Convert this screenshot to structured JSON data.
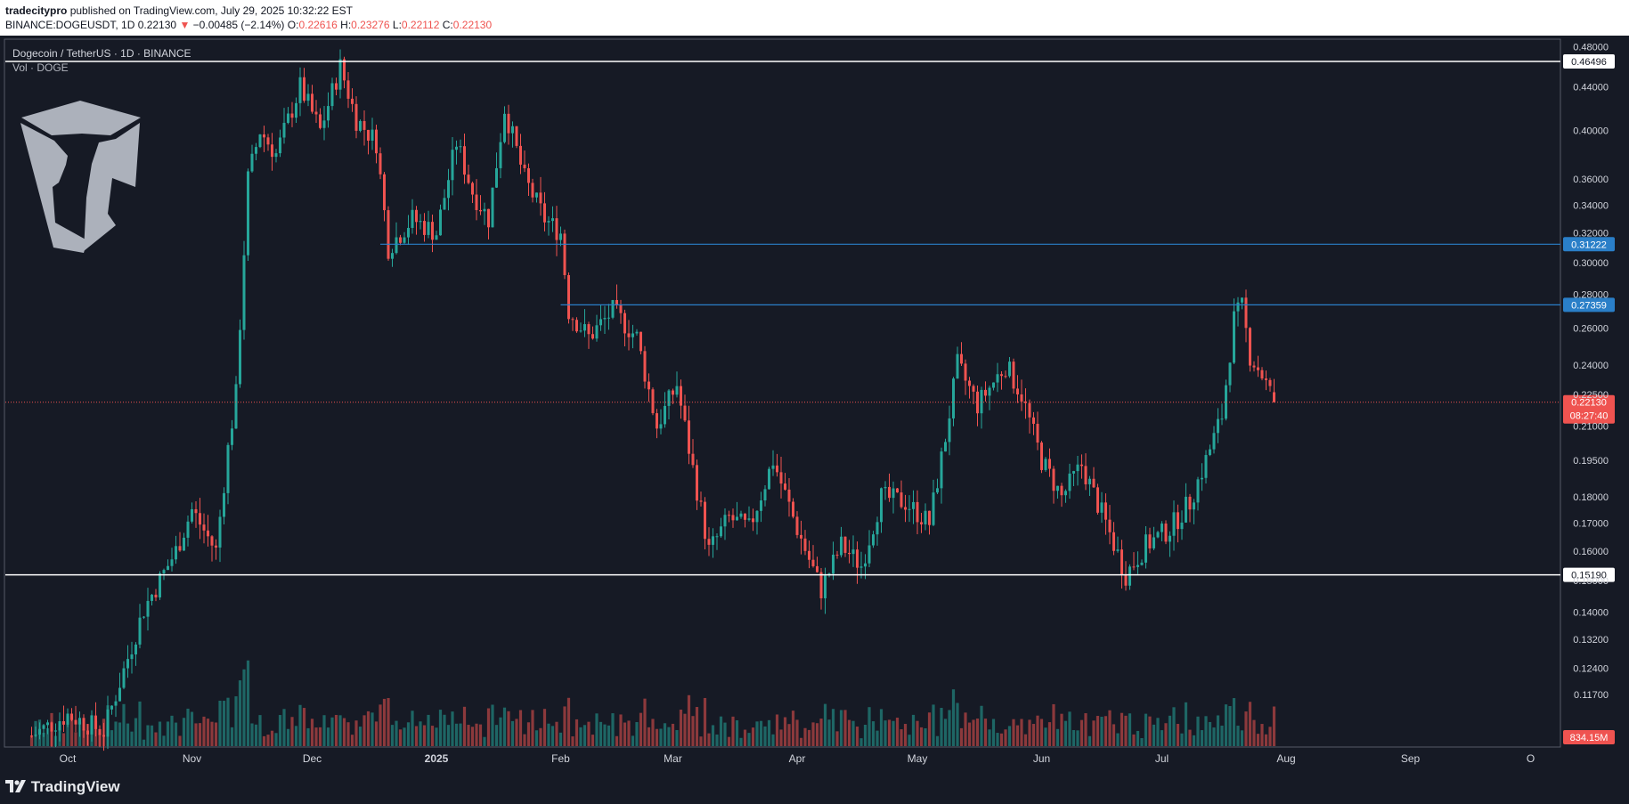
{
  "header": {
    "publisher": "tradecitypro",
    "published_text": " published on TradingView.com, July 29, 2025 10:32:22 EST",
    "symbol": "BINANCE:DOGEUSDT, 1D",
    "last": "0.22130",
    "change_arrow": "▼",
    "change": "−0.00485 (−2.14%)",
    "o_label": "O:",
    "o": "0.22616",
    "h_label": "H:",
    "h": "0.23276",
    "l_label": "L:",
    "l": "0.22112",
    "c_label": "C:",
    "c": "0.22130"
  },
  "legend": {
    "title": "Dogecoin / TetherUS · 1D · BINANCE",
    "volume": "Vol · DOGE"
  },
  "footer": {
    "brand": "TradingView"
  },
  "colors": {
    "background": "#161a25",
    "up": "#26a69a",
    "down": "#ef5350",
    "line_white": "#ffffff",
    "line_blue": "#2962ff",
    "blue_label": "#2a7fc8"
  },
  "chart_data": {
    "type": "candlestick",
    "scale": "log",
    "x_ticks": [
      "Oct",
      "Nov",
      "Dec",
      "2025",
      "Feb",
      "Mar",
      "Apr",
      "May",
      "Jun",
      "Jul",
      "Aug",
      "Sep",
      "O"
    ],
    "y_ticks": [
      "0.48000",
      "0.44000",
      "0.40000",
      "0.36000",
      "0.34000",
      "0.32000",
      "0.30000",
      "0.28000",
      "0.26000",
      "0.24000",
      "0.22500",
      "0.21000",
      "0.19500",
      "0.18000",
      "0.17000",
      "0.16000",
      "0.15000",
      "0.14000",
      "0.13200",
      "0.12400",
      "0.11700"
    ],
    "ylim": [
      0.112,
      0.49
    ],
    "horizontal_lines": [
      {
        "value": 0.46496,
        "label": "0.46496",
        "color": "white",
        "start": "Sep 2024"
      },
      {
        "value": 0.31222,
        "label": "0.31222",
        "color": "blue",
        "start": "Dec 2024"
      },
      {
        "value": 0.27359,
        "label": "0.27359",
        "color": "blue",
        "start": "Feb 2025"
      },
      {
        "value": 0.1519,
        "label": "0.15190",
        "color": "white",
        "start": "Sep 2024"
      }
    ],
    "last_price": {
      "value": 0.2213,
      "label": "0.22130",
      "countdown": "08:27:40"
    },
    "volume_label": "834.15M",
    "price_path": [
      {
        "date": "2024-09-22",
        "close": 0.107
      },
      {
        "date": "2024-10-01",
        "close": 0.112
      },
      {
        "date": "2024-10-10",
        "close": 0.108
      },
      {
        "date": "2024-10-20",
        "close": 0.141
      },
      {
        "date": "2024-10-28",
        "close": 0.16
      },
      {
        "date": "2024-11-01",
        "close": 0.175
      },
      {
        "date": "2024-11-07",
        "close": 0.16
      },
      {
        "date": "2024-11-10",
        "close": 0.2
      },
      {
        "date": "2024-11-12",
        "close": 0.225
      },
      {
        "date": "2024-11-15",
        "close": 0.36
      },
      {
        "date": "2024-11-18",
        "close": 0.4
      },
      {
        "date": "2024-11-22",
        "close": 0.38
      },
      {
        "date": "2024-11-28",
        "close": 0.44
      },
      {
        "date": "2024-12-03",
        "close": 0.4
      },
      {
        "date": "2024-12-08",
        "close": 0.46
      },
      {
        "date": "2024-12-12",
        "close": 0.41
      },
      {
        "date": "2024-12-17",
        "close": 0.39
      },
      {
        "date": "2024-12-20",
        "close": 0.31
      },
      {
        "date": "2024-12-26",
        "close": 0.33
      },
      {
        "date": "2025-01-01",
        "close": 0.32
      },
      {
        "date": "2025-01-06",
        "close": 0.39
      },
      {
        "date": "2025-01-10",
        "close": 0.35
      },
      {
        "date": "2025-01-14",
        "close": 0.33
      },
      {
        "date": "2025-01-18",
        "close": 0.42
      },
      {
        "date": "2025-01-23",
        "close": 0.36
      },
      {
        "date": "2025-01-28",
        "close": 0.33
      },
      {
        "date": "2025-02-01",
        "close": 0.32
      },
      {
        "date": "2025-02-03",
        "close": 0.27
      },
      {
        "date": "2025-02-08",
        "close": 0.255
      },
      {
        "date": "2025-02-14",
        "close": 0.27
      },
      {
        "date": "2025-02-20",
        "close": 0.255
      },
      {
        "date": "2025-02-25",
        "close": 0.21
      },
      {
        "date": "2025-03-02",
        "close": 0.23
      },
      {
        "date": "2025-03-05",
        "close": 0.2
      },
      {
        "date": "2025-03-10",
        "close": 0.16
      },
      {
        "date": "2025-03-15",
        "close": 0.172
      },
      {
        "date": "2025-03-20",
        "close": 0.168
      },
      {
        "date": "2025-03-26",
        "close": 0.195
      },
      {
        "date": "2025-04-01",
        "close": 0.168
      },
      {
        "date": "2025-04-07",
        "close": 0.147
      },
      {
        "date": "2025-04-12",
        "close": 0.162
      },
      {
        "date": "2025-04-17",
        "close": 0.155
      },
      {
        "date": "2025-04-22",
        "close": 0.18
      },
      {
        "date": "2025-04-28",
        "close": 0.178
      },
      {
        "date": "2025-05-04",
        "close": 0.17
      },
      {
        "date": "2025-05-08",
        "close": 0.205
      },
      {
        "date": "2025-05-11",
        "close": 0.24
      },
      {
        "date": "2025-05-16",
        "close": 0.22
      },
      {
        "date": "2025-05-23",
        "close": 0.24
      },
      {
        "date": "2025-05-27",
        "close": 0.225
      },
      {
        "date": "2025-06-01",
        "close": 0.195
      },
      {
        "date": "2025-06-06",
        "close": 0.18
      },
      {
        "date": "2025-06-11",
        "close": 0.193
      },
      {
        "date": "2025-06-17",
        "close": 0.17
      },
      {
        "date": "2025-06-22",
        "close": 0.152
      },
      {
        "date": "2025-06-27",
        "close": 0.162
      },
      {
        "date": "2025-07-03",
        "close": 0.168
      },
      {
        "date": "2025-07-08",
        "close": 0.178
      },
      {
        "date": "2025-07-12",
        "close": 0.195
      },
      {
        "date": "2025-07-16",
        "close": 0.215
      },
      {
        "date": "2025-07-19",
        "close": 0.265
      },
      {
        "date": "2025-07-21",
        "close": 0.272
      },
      {
        "date": "2025-07-23",
        "close": 0.245
      },
      {
        "date": "2025-07-26",
        "close": 0.235
      },
      {
        "date": "2025-07-29",
        "close": 0.2213
      }
    ]
  }
}
